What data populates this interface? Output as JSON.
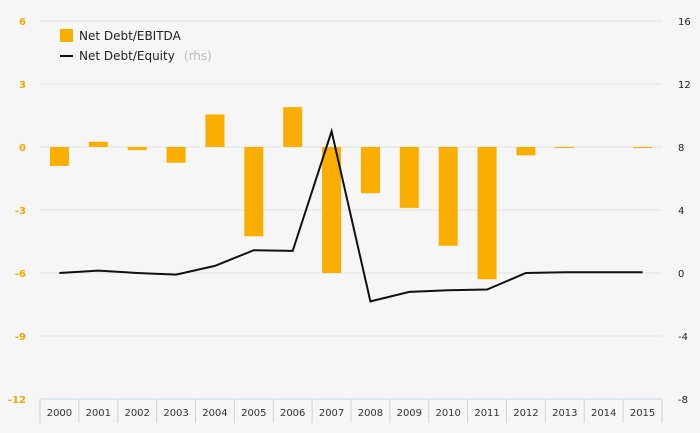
{
  "chart_data": {
    "type": "bar",
    "categories": [
      "2000",
      "2001",
      "2002",
      "2003",
      "2004",
      "2005",
      "2006",
      "2007",
      "2008",
      "2009",
      "2010",
      "2011",
      "2012",
      "2013",
      "2014",
      "2015"
    ],
    "series": [
      {
        "name": "Net Debt/EBITDA",
        "type": "bar",
        "axis": "left",
        "color": "#f9ae00",
        "values": [
          -0.9,
          0.25,
          -0.15,
          -0.75,
          1.55,
          -4.25,
          1.9,
          -6.0,
          -2.2,
          -2.9,
          -4.7,
          -6.3,
          -0.4,
          -0.05,
          0,
          -0.05
        ]
      },
      {
        "name": "Net Debt/Equity",
        "type": "line",
        "axis": "right",
        "color": "#111111",
        "values": [
          0.0,
          0.15,
          0.0,
          -0.1,
          0.45,
          1.45,
          1.4,
          9.0,
          -1.8,
          -1.2,
          -1.1,
          -1.05,
          0.0,
          0.05,
          0.05,
          0.05
        ]
      }
    ],
    "legend": {
      "bar_label": "Net Debt/EBITDA",
      "line_label": "Net Debt/Equity",
      "line_note": "(rhs)",
      "position": "top-left"
    },
    "left_axis": {
      "ylim": [
        -12,
        6
      ],
      "ticks": [
        6,
        3,
        0,
        -3,
        -6,
        -9,
        -12
      ],
      "color": "#f0a800"
    },
    "right_axis": {
      "ylim": [
        -8,
        16
      ],
      "ticks": [
        16,
        12,
        8,
        4,
        0,
        -4,
        -8
      ]
    },
    "grid": true
  }
}
